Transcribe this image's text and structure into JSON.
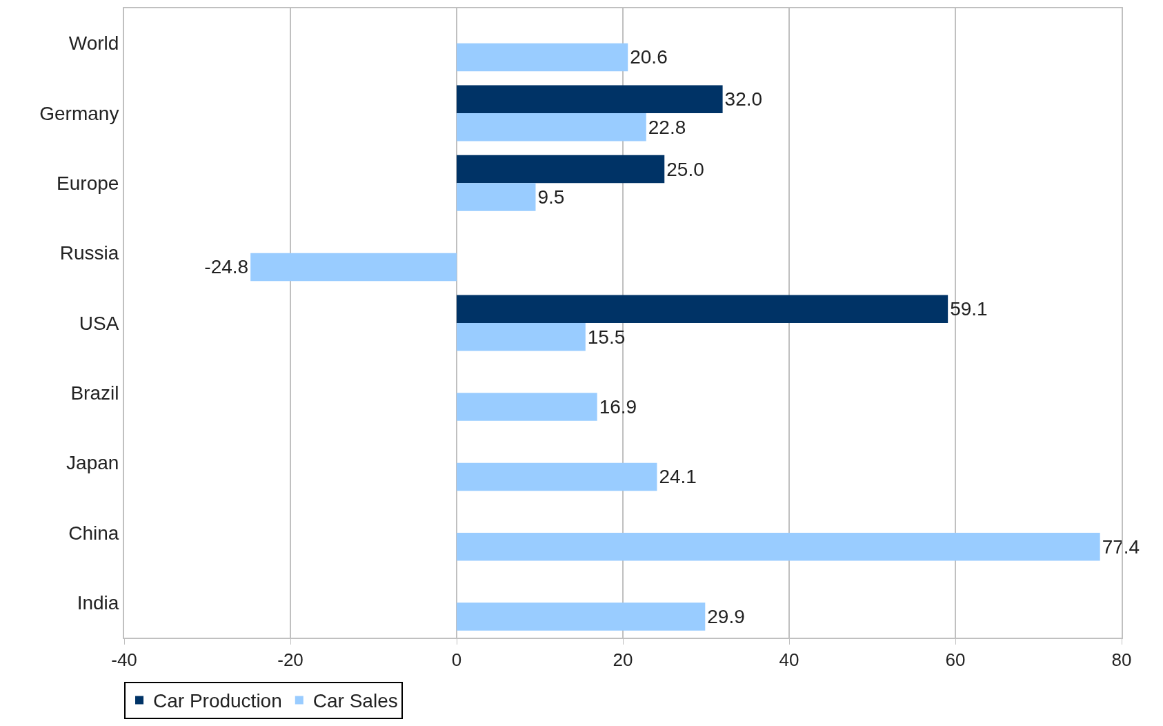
{
  "chart_data": {
    "type": "bar",
    "orientation": "horizontal",
    "categories": [
      "World",
      "Germany",
      "Europe",
      "Russia",
      "USA",
      "Brazil",
      "Japan",
      "China",
      "India"
    ],
    "series": [
      {
        "name": "Car Production",
        "color": "#003366",
        "values": [
          null,
          32.0,
          25.0,
          null,
          59.1,
          null,
          null,
          null,
          null
        ],
        "value_labels": [
          null,
          "32.0",
          "25.0",
          null,
          "59.1",
          null,
          null,
          null,
          null
        ]
      },
      {
        "name": "Car Sales",
        "color": "#99ccff",
        "values": [
          20.6,
          22.8,
          9.5,
          -24.8,
          15.5,
          16.9,
          24.1,
          77.4,
          29.9
        ],
        "value_labels": [
          "20.6",
          "22.8",
          "9.5",
          "-24.8",
          "15.5",
          "16.9",
          "24.1",
          "77.4",
          "29.9"
        ]
      }
    ],
    "xlim": [
      -40,
      80
    ],
    "xticks": [
      -40,
      -20,
      0,
      20,
      40,
      60,
      80
    ],
    "grid": "x",
    "legend": "bottom left"
  }
}
